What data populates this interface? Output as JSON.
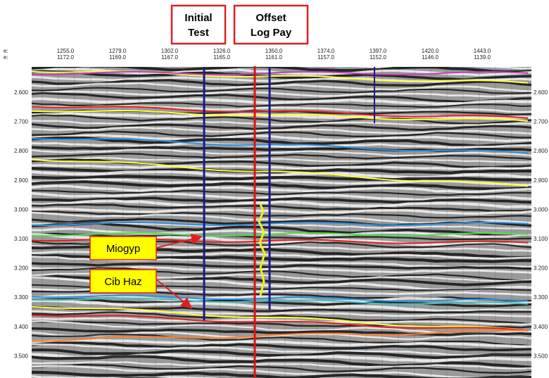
{
  "header_boxes": [
    "Initial Test",
    "Offset Log Pay"
  ],
  "trace_axis": {
    "prefixes": [
      "e:",
      "e:"
    ],
    "labels": [
      [
        "1255.0",
        "1172.0"
      ],
      [
        "1279.0",
        "1169.0"
      ],
      [
        "1302.0",
        "1167.0"
      ],
      [
        "1326.0",
        "1165.0"
      ],
      [
        "1350.0",
        "1161.0"
      ],
      [
        "1374.0",
        "1157.0"
      ],
      [
        "1397.0",
        "1152.0"
      ],
      [
        "1420.0",
        "1146.0"
      ],
      [
        "1443.0",
        "1139.0"
      ]
    ]
  },
  "time_axis": [
    "2.600",
    "2.700",
    "2.800",
    "2.900",
    "3.000",
    "3.100",
    "3.200",
    "3.300",
    "3.400",
    "3.500"
  ],
  "callouts": [
    "Miogyp",
    "Cib Haz"
  ]
}
